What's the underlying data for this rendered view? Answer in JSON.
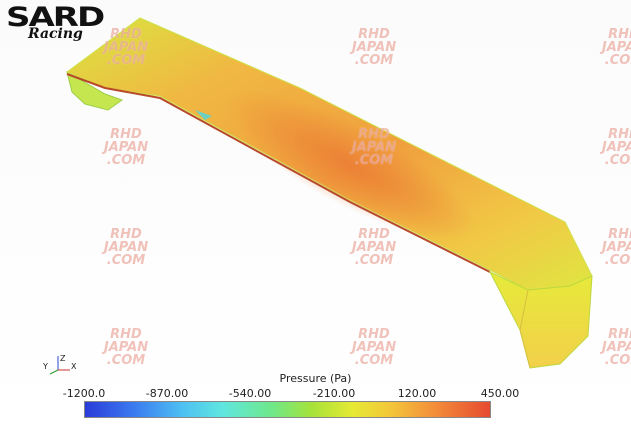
{
  "logo": {
    "brand": "SARD",
    "sub": "Racing"
  },
  "watermark": {
    "line1": "RHD",
    "line2": "JAPAN",
    "line3": ".COM"
  },
  "axis": {
    "x": "X",
    "y": "Y",
    "z": "Z"
  },
  "legend": {
    "title": "Pressure (Pa)",
    "ticks": [
      "-1200.0",
      "-870.00",
      "-540.00",
      "-210.00",
      "120.00",
      "450.00"
    ]
  },
  "colors": {
    "cold": "#2a3bd8",
    "hot": "#e64a30",
    "surface": "#f0a040",
    "edge": "#b8e040"
  }
}
